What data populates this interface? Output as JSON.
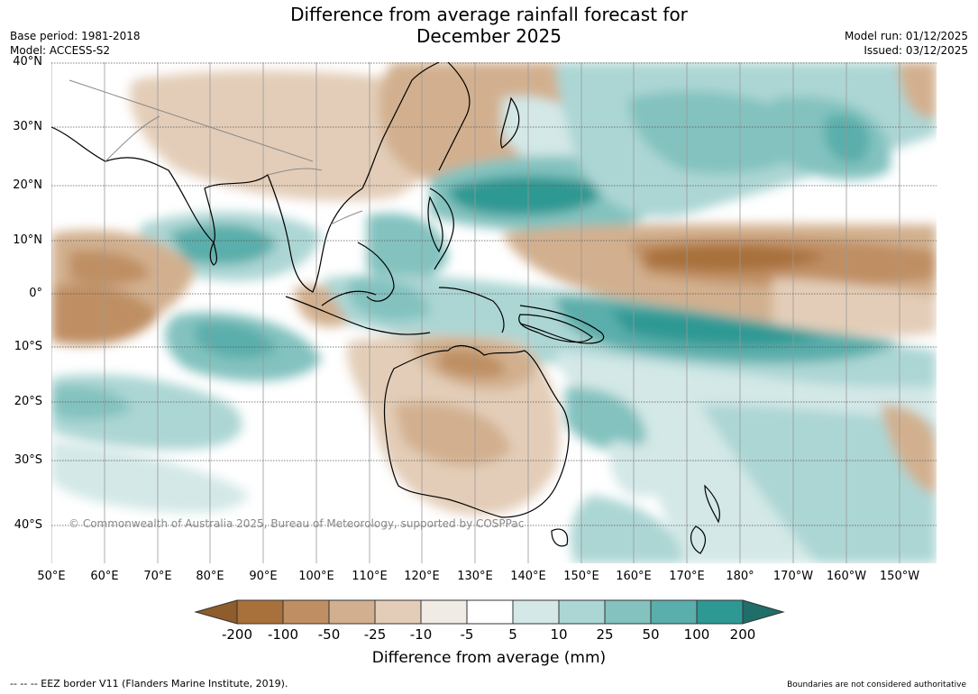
{
  "title_line1": "Difference from average rainfall forecast for",
  "title_line2": "December 2025",
  "base_period": "Base period: 1981-2018",
  "model": "Model: ACCESS-S2",
  "model_run": "Model run: 01/12/2025",
  "issued": "Issued: 03/12/2025",
  "lat_labels": [
    "40°N",
    "30°N",
    "20°N",
    "10°N",
    "0°",
    "10°S",
    "20°S",
    "30°S",
    "40°S"
  ],
  "lon_labels": [
    "50°E",
    "60°E",
    "70°E",
    "80°E",
    "90°E",
    "100°E",
    "110°E",
    "120°E",
    "130°E",
    "140°E",
    "150°E",
    "160°E",
    "170°E",
    "180°",
    "170°W",
    "160°W",
    "150°W"
  ],
  "copyright": "© Commonwealth of Australia 2025, Bureau of Meteorology, supported by COSPPac",
  "colorbar": {
    "labels": [
      "-200",
      "-100",
      "-50",
      "-25",
      "-10",
      "-5",
      "5",
      "10",
      "25",
      "50",
      "100",
      "200"
    ],
    "colors": [
      "#8f5c2b",
      "#a8703a",
      "#bf8f63",
      "#d2b08f",
      "#e3cdb8",
      "#f1ebe5",
      "#ffffff",
      "#d3e8e7",
      "#acd6d4",
      "#83c2bf",
      "#5aaeab",
      "#2e9893",
      "#1f6e6a"
    ],
    "title": "Difference from average (mm)"
  },
  "footer_left": "--  --  -- EEZ border V11 (Flanders Marine Institute, 2019).",
  "footer_right": "Boundaries are not considered authoritative"
}
